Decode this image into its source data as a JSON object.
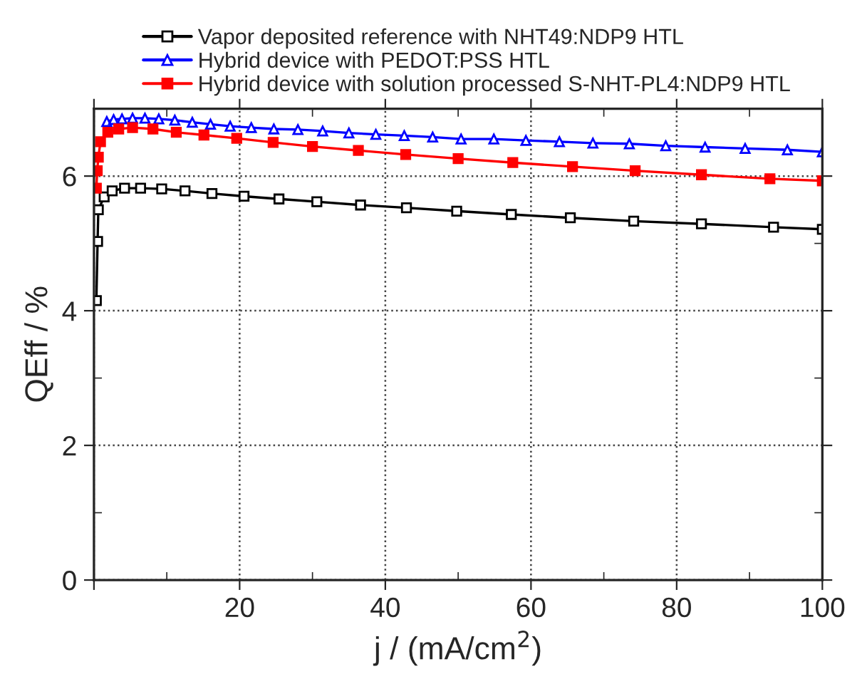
{
  "chart_data": {
    "type": "line",
    "xlabel": "j / (mA/cm$^{2}$)",
    "ylabel": "QEff / %",
    "xlim": [
      0,
      100
    ],
    "xticks": [
      {
        "value": 0,
        "label": null
      },
      20,
      40,
      60,
      80,
      100
    ],
    "ylim": [
      0,
      7
    ],
    "yticks": [
      0,
      2,
      4,
      6
    ],
    "grid": true,
    "legend": "top",
    "line_style": "solid",
    "series": [
      {
        "name": "Vapor deposited reference with NHT49:NDP9 HTL",
        "color": "#000000",
        "marker": "square",
        "x": [
          0.33,
          0.5,
          0.6,
          1.4,
          2.5,
          4.2,
          6.4,
          9.3,
          12.5,
          16.2,
          20.6,
          25.4,
          30.6,
          36.6,
          42.9,
          49.8,
          57.3,
          65.4,
          74.1,
          83.4,
          93.3,
          100
        ],
        "values": [
          4.15,
          5.03,
          5.5,
          5.69,
          5.78,
          5.82,
          5.82,
          5.81,
          5.78,
          5.74,
          5.7,
          5.66,
          5.62,
          5.57,
          5.53,
          5.48,
          5.43,
          5.38,
          5.33,
          5.29,
          5.24,
          5.21
        ]
      },
      {
        "name": "Hybrid device with PEDOT:PSS HTL",
        "color": "#0000ff",
        "marker": "triangle",
        "x": [
          1.76,
          2.7,
          3.85,
          5.3,
          7.0,
          8.9,
          11.1,
          13.5,
          16.0,
          18.7,
          21.6,
          24.7,
          28.0,
          31.4,
          35.0,
          38.7,
          42.6,
          46.5,
          50.4,
          54.9,
          59.3,
          63.9,
          68.5,
          73.5,
          78.5,
          83.9,
          89.4,
          95.2,
          100
        ],
        "values": [
          6.81,
          6.84,
          6.85,
          6.86,
          6.86,
          6.85,
          6.83,
          6.8,
          6.77,
          6.74,
          6.72,
          6.7,
          6.69,
          6.67,
          6.64,
          6.62,
          6.6,
          6.58,
          6.55,
          6.55,
          6.53,
          6.51,
          6.49,
          6.48,
          6.45,
          6.43,
          6.41,
          6.39,
          6.36
        ]
      },
      {
        "name": "Hybrid device with solution processed S-NHT-PL4:NDP9 HTL",
        "color": "#ff0000",
        "marker": "square",
        "x": [
          0.33,
          0.45,
          0.6,
          0.9,
          1.9,
          3.4,
          5.3,
          8.1,
          11.3,
          15.1,
          19.6,
          24.6,
          30.0,
          36.3,
          42.8,
          50.0,
          57.5,
          65.7,
          74.3,
          83.4,
          92.8,
          100
        ],
        "values": [
          5.82,
          6.08,
          6.28,
          6.51,
          6.65,
          6.7,
          6.72,
          6.7,
          6.65,
          6.61,
          6.56,
          6.5,
          6.44,
          6.38,
          6.32,
          6.26,
          6.2,
          6.14,
          6.08,
          6.02,
          5.96,
          5.93
        ]
      }
    ]
  }
}
